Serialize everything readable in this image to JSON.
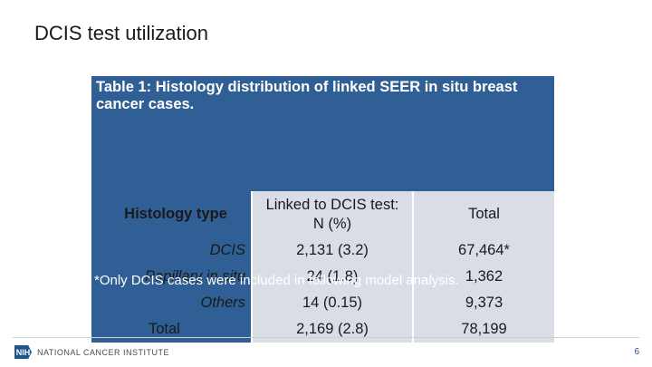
{
  "slide": {
    "title": "DCIS test utilization"
  },
  "table": {
    "caption": "Table 1: Histology distribution of linked SEER in situ breast cancer cases.",
    "headers": {
      "histology": "Histology type",
      "linked_line1": "Linked to DCIS test:",
      "linked_line2": "N (%)",
      "total": "Total"
    },
    "rows": [
      {
        "type": "DCIS",
        "linked": "2,131 (3.2)",
        "total": "67,464*"
      },
      {
        "type": "Papillary in situ",
        "linked": "24 (1.8)",
        "total": "1,362"
      },
      {
        "type": "Others",
        "linked": "14 (0.15)",
        "total": "9,373"
      },
      {
        "type": "Total",
        "linked": "2,169 (2.8)",
        "total": "78,199"
      }
    ],
    "footnote": "*Only DCIS cases were included in following model analysis."
  },
  "footer": {
    "logo_mark": "NIH",
    "logo_text": "NATIONAL CANCER INSTITUTE",
    "page_number": "6"
  },
  "colors": {
    "table_header": "#2f5f95",
    "table_cell": "#d9dde6",
    "accent": "#20558a"
  }
}
